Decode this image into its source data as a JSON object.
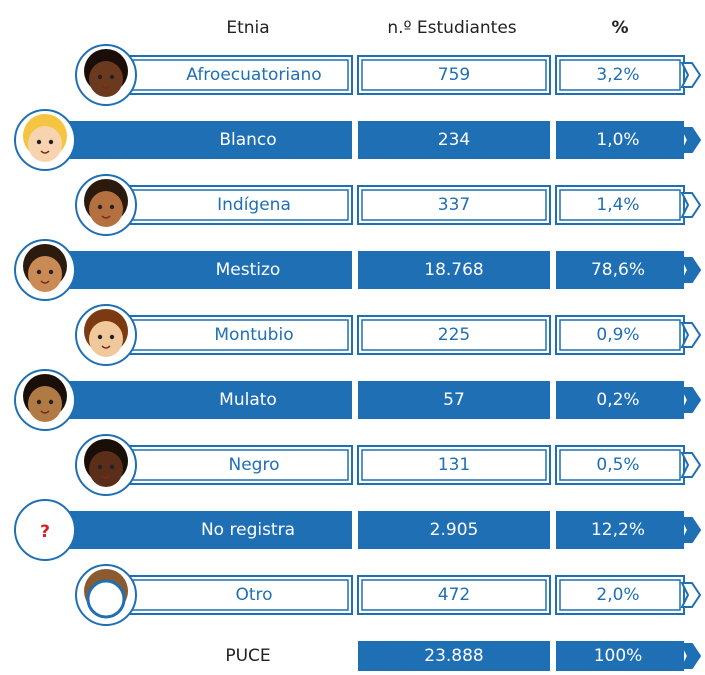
{
  "header": {
    "etnia": "Etnia",
    "estudiantes": "n.º Estudiantes",
    "porcentaje": "%"
  },
  "rows": [
    {
      "etnia": "Afroecuatoriano",
      "estudiantes": "759",
      "porcentaje": "3,2%"
    },
    {
      "etnia": "Blanco",
      "estudiantes": "234",
      "porcentaje": "1,0%"
    },
    {
      "etnia": "Indígena",
      "estudiantes": "337",
      "porcentaje": "1,4%"
    },
    {
      "etnia": "Mestizo",
      "estudiantes": "18.768",
      "porcentaje": "78,6%"
    },
    {
      "etnia": "Montubio",
      "estudiantes": "225",
      "porcentaje": "0,9%"
    },
    {
      "etnia": "Mulato",
      "estudiantes": "57",
      "porcentaje": "0,2%"
    },
    {
      "etnia": "Negro",
      "estudiantes": "131",
      "porcentaje": "0,5%"
    },
    {
      "etnia": "No registra",
      "estudiantes": "2.905",
      "porcentaje": "12,2%",
      "icon": "?"
    },
    {
      "etnia": "Otro",
      "estudiantes": "472",
      "porcentaje": "2,0%"
    }
  ],
  "total": {
    "etnia": "PUCE",
    "estudiantes": "23.888",
    "porcentaje": "100%"
  }
}
